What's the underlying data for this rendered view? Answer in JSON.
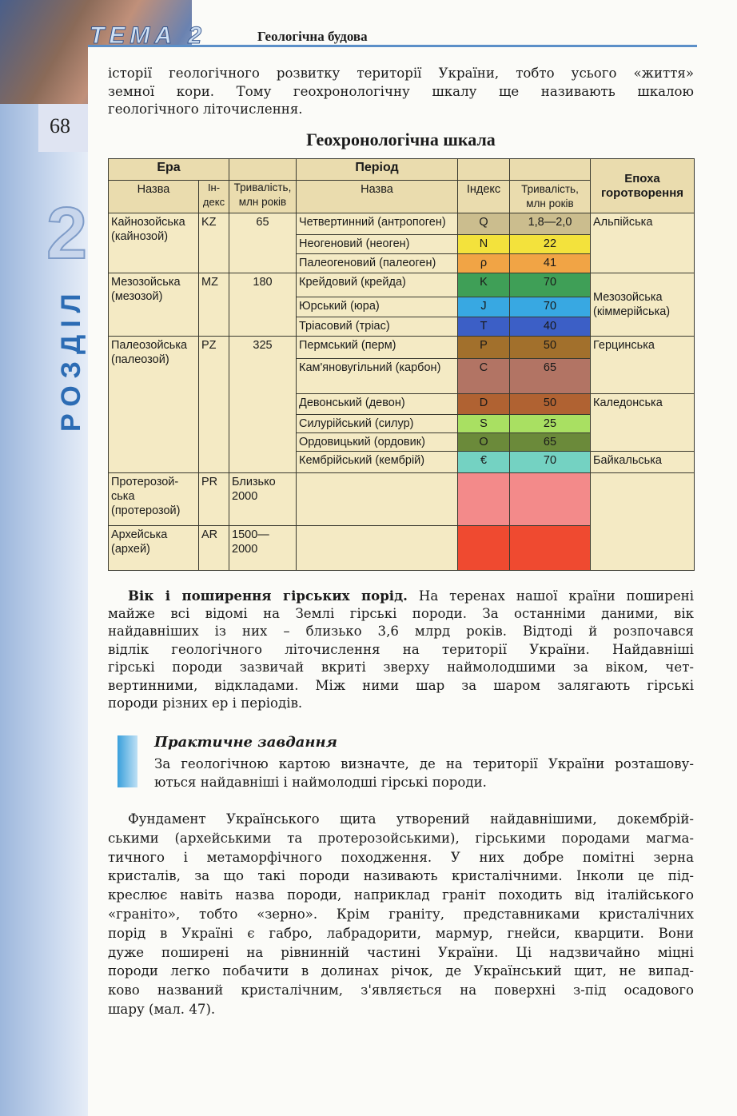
{
  "header": {
    "tema": "ТЕМА 2",
    "topic": "Геологічна будова",
    "page_number": "68"
  },
  "sidebar": {
    "section": "РОЗДІЛ",
    "section_number": "2"
  },
  "intro": {
    "lines": [
      "історії геологічного розвитку території України, тобто усього «життя»",
      "земної кори. Тому геохронологічну шкалу ще називають шкалою",
      "геологічного літочислення."
    ]
  },
  "table": {
    "title": "Геохронологічна шкала",
    "headers": {
      "era": "Ера",
      "period": "Період",
      "epoch": "Епоха горотворення",
      "name": "Назва",
      "era_index": "Ін-декс",
      "duration": "Тривалість, млн років",
      "period_name": "Назва",
      "period_index": "Індекс",
      "period_duration": "Тривалість, млн років"
    },
    "eras": [
      {
        "name": "Кайнозойська (кайнозой)",
        "index": "KZ",
        "duration": "65"
      },
      {
        "name": "Мезозойська (мезозой)",
        "index": "MZ",
        "duration": "180"
      },
      {
        "name": "Палеозойська (палеозой)",
        "index": "PZ",
        "duration": "325"
      },
      {
        "name": "Протерозой-ська (протерозой)",
        "index": "PR",
        "duration": "Близько 2000"
      },
      {
        "name": "Архейська (архей)",
        "index": "AR",
        "duration": "1500—2000"
      }
    ],
    "periods": [
      {
        "name": "Четвертинний (антропоген)",
        "index": "Q",
        "duration": "1,8—2,0",
        "color": "#cbbd8e"
      },
      {
        "name": "Неогеновий (неоген)",
        "index": "N",
        "duration": "22",
        "color": "#f3e23c"
      },
      {
        "name": "Палеогеновий (палеоген)",
        "index": "ρ",
        "duration": "41",
        "color": "#f1a445"
      },
      {
        "name": "Крейдовий (крейда)",
        "index": "K",
        "duration": "70",
        "color": "#3f9f57"
      },
      {
        "name": "Юрський (юра)",
        "index": "J",
        "duration": "70",
        "color": "#38a8e2"
      },
      {
        "name": "Тріасовий (тріас)",
        "index": "T",
        "duration": "40",
        "color": "#3c5fc6"
      },
      {
        "name": "Пермський (перм)",
        "index": "P",
        "duration": "50",
        "color": "#a2702c"
      },
      {
        "name": "Кам'яновугільний (карбон)",
        "index": "C",
        "duration": "65",
        "color": "#b27464"
      },
      {
        "name": "Девонський (девон)",
        "index": "D",
        "duration": "50",
        "color": "#b06232"
      },
      {
        "name": "Силурійський (силур)",
        "index": "S",
        "duration": "25",
        "color": "#a9e062"
      },
      {
        "name": "Ордовицький (ордовик)",
        "index": "O",
        "duration": "65",
        "color": "#6b8a3a"
      },
      {
        "name": "Кембрійський (кембрій)",
        "index": "€",
        "duration": "70",
        "color": "#74d2c2"
      }
    ],
    "precambrian_colors": {
      "PR": "#f38a8a",
      "AR": "#ef4a30"
    },
    "epochs": [
      "Альпійська",
      "Мезозойська (кіммерійська)",
      "Герцинська",
      "Каледонська",
      "Байкальська"
    ]
  },
  "body1": {
    "lines": [
      "Вік і поширення гірських порід. На теренах нашої країни поширені",
      "майже всі відомі на Землі гірські породи. За останніми даними, вік",
      "найдавніших із них – близько 3,6 млрд років. Відтоді й розпочався",
      "відлік геологічного літочислення на території України. Найдавніші",
      "гірські породи зазвичай вкриті зверху наймолодшими за віком, чет-",
      "вертинними, відкладами. Між ними шар за шаром залягають гірські",
      "породи різних ер і періодів."
    ],
    "bold_lead": "Вік і поширення гірських порід."
  },
  "practical": {
    "title": "Практичне завдання",
    "lines": [
      "За геологічною картою визначте, де на території України розташову-",
      "ються найдавніші і наймолодші гірські породи."
    ]
  },
  "body2": {
    "lines": [
      "Фундамент Українського щита утворений найдавнішими, докембрій-",
      "ськими (архейськими та протерозойськими), гірськими породами магма-",
      "тичного і метаморфічного походження. У них добре помітні зерна",
      "кристалів, за що такі породи називають кристалічними. Інколи це під-",
      "креслює навіть назва породи, наприклад граніт походить від італійського",
      "«граніто», тобто «зерно». Крім граніту, представниками кристалічних",
      "порід в Україні є габро, лабрадорити, мармур, гнейси, кварцити. Вони",
      "дуже поширені на рівнинній частині України. Ці надзвичайно міцні",
      "породи легко побачити в долинах річок, де Український щит, не випад-",
      "ково названий кристалічним, з'являється на поверхні з-під осадового",
      "шару (мал. 47)."
    ]
  }
}
